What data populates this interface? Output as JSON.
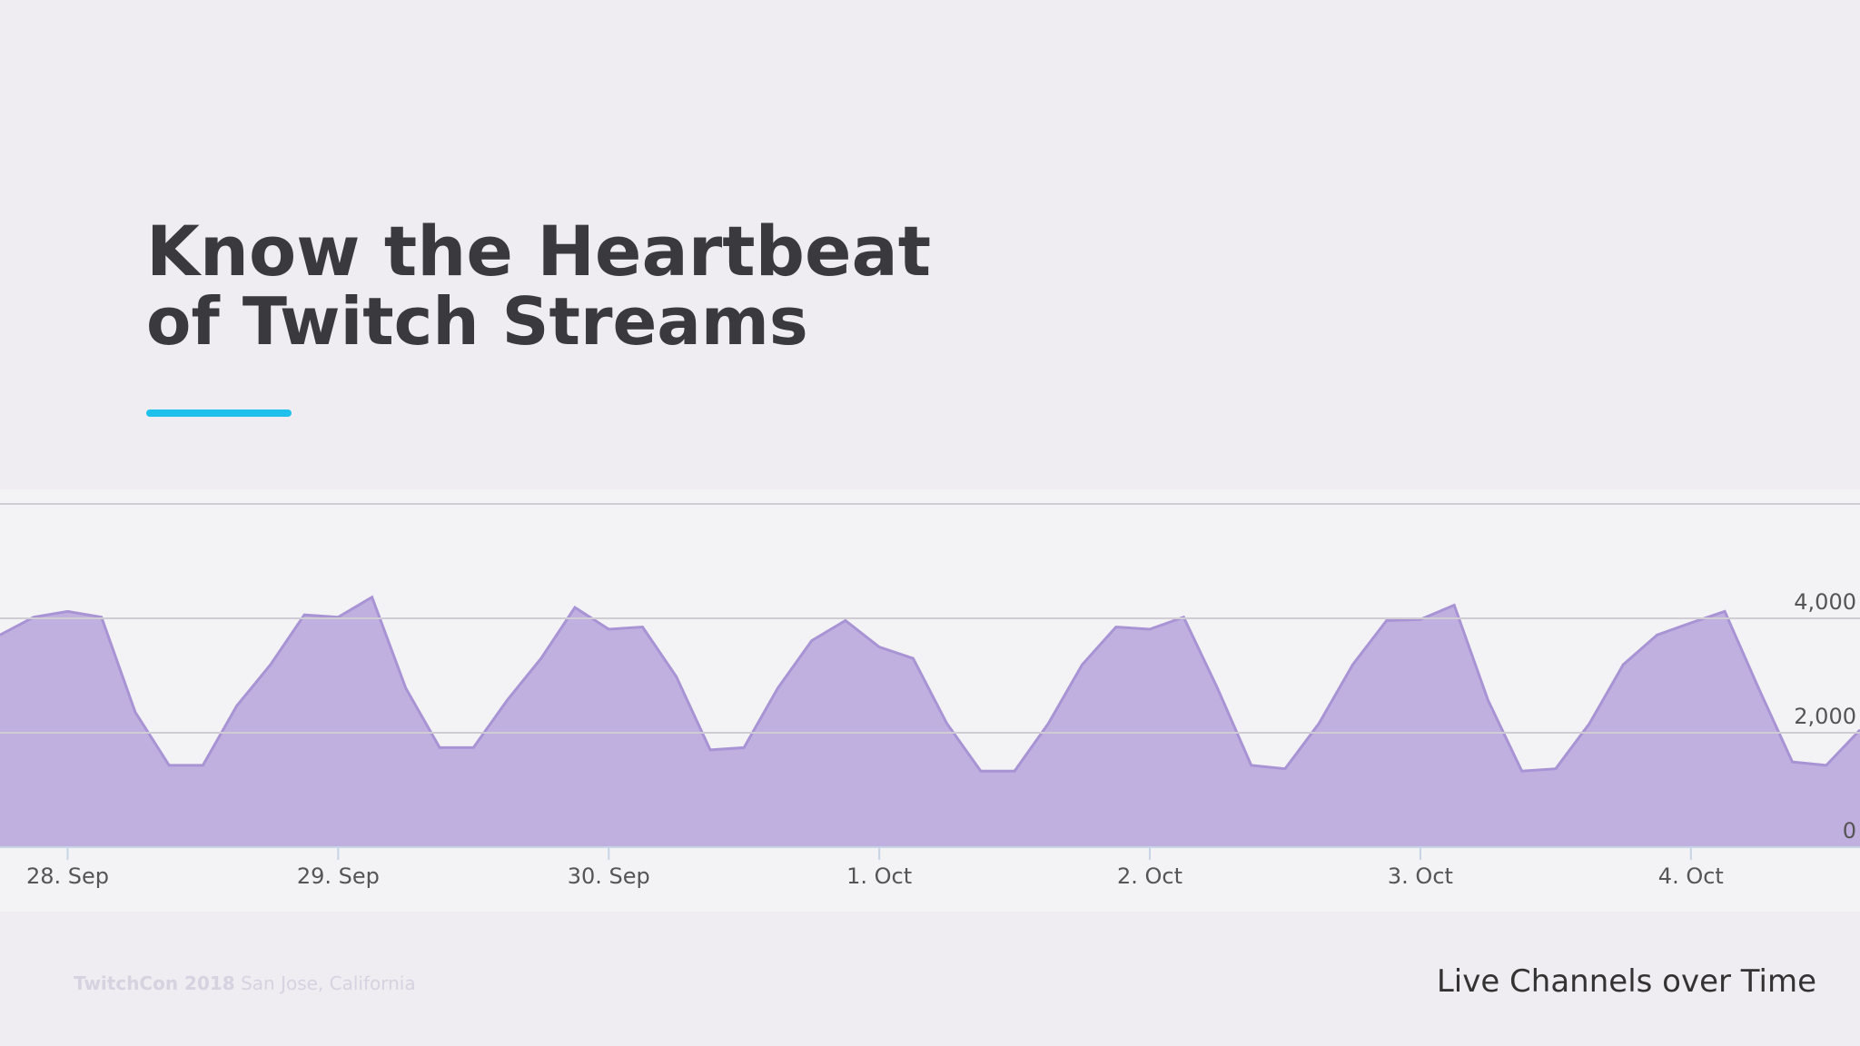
{
  "heading": {
    "lines": [
      "Know the Heartbeat",
      "of Twitch Streams"
    ]
  },
  "footer": {
    "event": "TwitchCon 2018",
    "place": "San Jose, California"
  },
  "chart_data": {
    "type": "area",
    "title": "Live Channels over Time",
    "x": [
      -0.25,
      -0.125,
      0,
      0.125,
      0.25,
      0.375,
      0.5,
      0.625,
      0.75,
      0.875,
      1,
      1.125,
      1.25,
      1.375,
      1.5,
      1.625,
      1.75,
      1.875,
      2,
      2.125,
      2.25,
      2.375,
      2.5,
      2.625,
      2.75,
      2.875,
      3,
      3.125,
      3.25,
      3.375,
      3.5,
      3.625,
      3.75,
      3.875,
      4,
      4.125,
      4.25,
      4.375,
      4.5,
      4.625,
      4.75,
      4.875,
      5,
      5.125,
      5.25,
      5.375,
      5.5,
      5.625,
      5.75,
      5.875,
      6,
      6.125,
      6.25,
      6.375,
      6.5,
      6.625
    ],
    "series": [
      {
        "name": "Live Channels",
        "color": "#c0b0e0",
        "values": [
          3710,
          4020,
          4120,
          4020,
          2360,
          1430,
          1430,
          2470,
          3190,
          4060,
          4020,
          4370,
          2780,
          1740,
          1740,
          2570,
          3300,
          4190,
          3810,
          3850,
          2980,
          1700,
          1740,
          2780,
          3610,
          3960,
          3500,
          3300,
          2160,
          1330,
          1330,
          2160,
          3190,
          3850,
          3810,
          4020,
          2780,
          1430,
          1370,
          2160,
          3190,
          3960,
          3980,
          4230,
          2570,
          1330,
          1370,
          2160,
          3190,
          3710,
          3920,
          4120,
          2780,
          1490,
          1430,
          2050
        ]
      }
    ],
    "xlim": [
      -0.25,
      6.625
    ],
    "xticks": [
      {
        "value": 0,
        "label": "28. Sep"
      },
      {
        "value": 1,
        "label": "29. Sep"
      },
      {
        "value": 2,
        "label": "30. Sep"
      },
      {
        "value": 3,
        "label": "1. Oct"
      },
      {
        "value": 4,
        "label": "2. Oct"
      },
      {
        "value": 5,
        "label": "3. Oct"
      },
      {
        "value": 6,
        "label": "4. Oct"
      }
    ],
    "ylim": [
      0,
      6000
    ],
    "yticks": [
      0,
      {
        "value": 2000,
        "label": "2,000"
      },
      {
        "value": 4000,
        "label": "4,000"
      }
    ],
    "grid": true
  }
}
